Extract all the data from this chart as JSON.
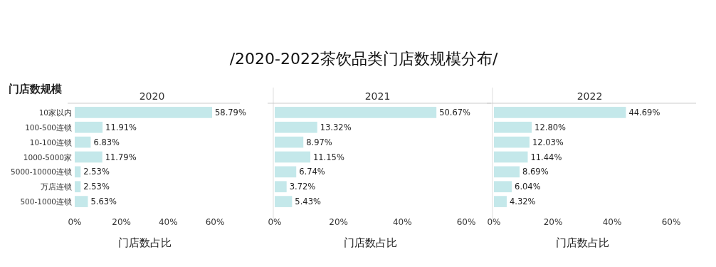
{
  "chart_data": [
    {
      "type": "bar",
      "orientation": "horizontal",
      "title": "2020",
      "ylabel": "门店数规模",
      "xlabel": "门店数占比",
      "annotations": [
        "/2020-2022茶饮品类门店数规模分布/"
      ],
      "categories": [
        "10家以内",
        "100-500连锁",
        "10-100连锁",
        "1000-5000家",
        "5000-10000连锁",
        "万店连锁",
        "500-1000连锁"
      ],
      "values": [
        58.79,
        11.91,
        6.83,
        11.79,
        2.53,
        2.53,
        5.63
      ],
      "color": "#c4e8ea",
      "xlim": [
        0,
        60
      ],
      "xticks": [
        {
          "value": 0,
          "label": "0%"
        },
        {
          "value": 20,
          "label": "20%"
        },
        {
          "value": 40,
          "label": "40%"
        },
        {
          "value": 60,
          "label": "60%"
        }
      ],
      "data_labels": true,
      "value_labels": [
        "58.79%",
        "11.91%",
        "6.83%",
        "11.79%",
        "2.53%",
        "2.53%",
        "5.63%"
      ]
    },
    {
      "type": "bar",
      "orientation": "horizontal",
      "title": "2021",
      "xlabel": "门店数占比",
      "categories": [
        null,
        null,
        null,
        null,
        null,
        null,
        null
      ],
      "values": [
        50.67,
        13.32,
        8.97,
        11.15,
        6.74,
        3.72,
        5.43
      ],
      "color": "#c4e8ea",
      "xlim": [
        0,
        60
      ],
      "xticks": [
        {
          "value": 0,
          "label": "0%"
        },
        {
          "value": 20,
          "label": "20%"
        },
        {
          "value": 40,
          "label": "40%"
        },
        {
          "value": 60,
          "label": "60%"
        }
      ],
      "tick_labels": "x",
      "data_labels": true,
      "value_labels": [
        "50.67%",
        "13.32%",
        "8.97%",
        "11.15%",
        "6.74%",
        "3.72%",
        "5.43%"
      ]
    },
    {
      "type": "bar",
      "orientation": "horizontal",
      "title": "2022",
      "xlabel": "门店数占比",
      "categories": [
        null,
        null,
        null,
        null,
        null,
        null,
        null
      ],
      "values": [
        44.69,
        12.8,
        12.03,
        11.44,
        8.69,
        6.04,
        4.32
      ],
      "color": "#c4e8ea",
      "xlim": [
        0,
        60
      ],
      "xticks": [
        {
          "value": 0,
          "label": "0%"
        },
        {
          "value": 20,
          "label": "20%"
        },
        {
          "value": 40,
          "label": "40%"
        },
        {
          "value": 60,
          "label": "60%"
        }
      ],
      "tick_labels": "x",
      "data_labels": true,
      "value_labels": [
        "44.69%",
        "12.80%",
        "12.03%",
        "11.44%",
        "8.69%",
        "6.04%",
        "4.32%"
      ]
    }
  ]
}
